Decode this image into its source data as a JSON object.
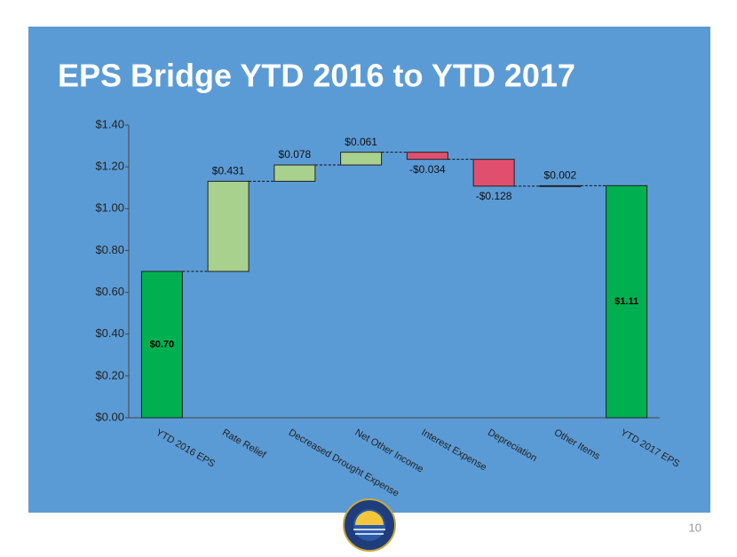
{
  "title": "EPS Bridge YTD 2016 to YTD 2017",
  "page_number": "10",
  "chart_data": {
    "type": "waterfall",
    "categories": [
      "YTD 2016 EPS",
      "Rate Relief",
      "Decreased Drought Expense",
      "Net Other Income",
      "Interest Expense",
      "Depreciation",
      "Other Items",
      "YTD 2017 EPS"
    ],
    "values": [
      0.7,
      0.431,
      0.078,
      0.061,
      -0.034,
      -0.128,
      0.002,
      1.11
    ],
    "value_labels": [
      "$0.70",
      "$0.431",
      "$0.078",
      "$0.061",
      "-$0.034",
      "-$0.128",
      "$0.002",
      "$1.11"
    ],
    "colors": [
      "#00b050",
      "#a9d18e",
      "#a9d18e",
      "#a9d18e",
      "#e0506e",
      "#e0506e",
      "#a9d18e",
      "#00b050"
    ],
    "ylim": [
      0,
      1.4
    ],
    "yticks": [
      {
        "value": 0,
        "label": "$0.00"
      },
      {
        "value": 0.2,
        "label": "$0.20"
      },
      {
        "value": 0.4,
        "label": "$0.40"
      },
      {
        "value": 0.6,
        "label": "$0.60"
      },
      {
        "value": 0.8,
        "label": "$0.80"
      },
      {
        "value": 1.0,
        "label": "$1.00"
      },
      {
        "value": 1.2,
        "label": "$1.20"
      },
      {
        "value": 1.4,
        "label": "$1.40"
      }
    ]
  }
}
